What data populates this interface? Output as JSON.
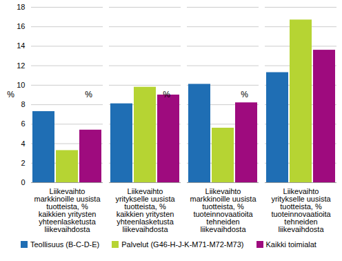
{
  "chart_data": {
    "type": "bar",
    "y_label": "%",
    "categories": [
      "Liikevaihto markkinoille uusista tuotteista, % kaikkien yritysten yhteenlasketusta liikevaihdosta",
      "Liikevaihto yritykselle uusista tuotteista, % kaikkien yritysten yhteenlasketusta liikevaihdosta",
      "Liikevaihto markkinoille uusista tuotteista, % tuoteinnovaatioita tehneiden liikevaihdosta",
      "Liikevaihto yritykselle uusista tuotteista, % tuoteinnovaatioita tehneiden liikevaihdosta"
    ],
    "series": [
      {
        "name": "Teollisuus (B-C-D-E)",
        "color": "#1f6eb4",
        "values": [
          7.3,
          8.1,
          10.1,
          11.3
        ]
      },
      {
        "name": "Palvelut (G46-H-J-K-M71-M72-M73)",
        "color": "#b6d433",
        "values": [
          3.3,
          9.8,
          5.6,
          16.7
        ]
      },
      {
        "name": "Kaikki toimialat",
        "color": "#9e0b7e",
        "values": [
          5.4,
          9.0,
          8.2,
          13.6
        ]
      }
    ],
    "ylim": [
      0,
      18
    ],
    "yticks": [
      0,
      2,
      4,
      6,
      8,
      10,
      12,
      14,
      16,
      18
    ],
    "grid": true,
    "legend": "bottom"
  }
}
